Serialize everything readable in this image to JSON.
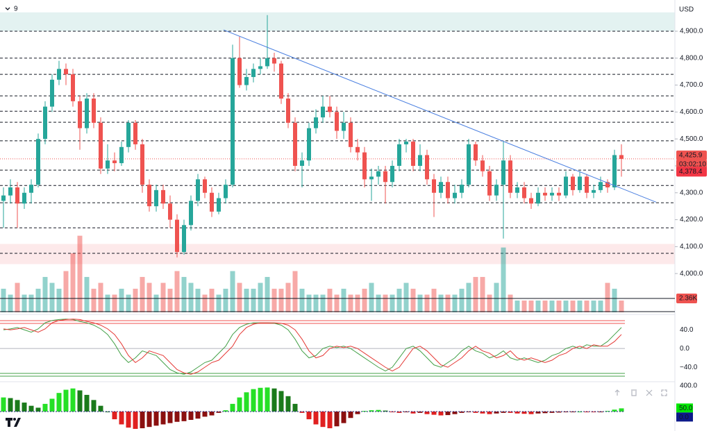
{
  "chart_data": {
    "type": "candlestick",
    "interval": "9",
    "currency": "USD",
    "ylim": [
      3856,
      5016
    ],
    "yticks": [
      {
        "value": 4900,
        "label": "4,900.0"
      },
      {
        "value": 4800,
        "label": "4,800.0"
      },
      {
        "value": 4700,
        "label": "4,700.0"
      },
      {
        "value": 4600,
        "label": "4,600.0"
      },
      {
        "value": 4500,
        "label": "4,500.0"
      },
      {
        "value": 4400,
        "label": "4,400.0"
      },
      {
        "value": 4300,
        "label": "4,300.0"
      },
      {
        "value": 4200,
        "label": "4,200.0"
      },
      {
        "value": 4100,
        "label": "4,100.0"
      },
      {
        "value": 4000,
        "label": "4,000.0"
      }
    ],
    "up_color": "#26a69a",
    "down_color": "#ef5350",
    "levels": [
      4900,
      4800,
      4740,
      4660,
      4603,
      4562,
      4493,
      4384,
      4327,
      4263,
      4170,
      4075
    ],
    "zones": [
      {
        "from": 4900,
        "to": 4970,
        "color": "#e3f2f1"
      },
      {
        "from": 4035,
        "to": 4110,
        "color": "#fde9ea"
      }
    ],
    "trendline": {
      "from": [
        31.7,
        4905
      ],
      "to": [
        94,
        4265
      ],
      "color": "#4a7fe0"
    },
    "last_price": {
      "value": 4425.9,
      "label": "4,425.9"
    },
    "countdown": "03:02:10",
    "ma_price": {
      "value": 4378.4,
      "label": "4,378.4"
    },
    "candles": [
      [
        4270,
        4320,
        4170,
        4290
      ],
      [
        4290,
        4350,
        4260,
        4320
      ],
      [
        4320,
        4340,
        4170,
        4260
      ],
      [
        4260,
        4320,
        4240,
        4300
      ],
      [
        4300,
        4350,
        4260,
        4330
      ],
      [
        4330,
        4520,
        4320,
        4500
      ],
      [
        4500,
        4640,
        4480,
        4620
      ],
      [
        4620,
        4740,
        4600,
        4720
      ],
      [
        4720,
        4790,
        4700,
        4760
      ],
      [
        4760,
        4780,
        4700,
        4740
      ],
      [
        4740,
        4760,
        4620,
        4640
      ],
      [
        4640,
        4660,
        4460,
        4540
      ],
      [
        4540,
        4670,
        4520,
        4650
      ],
      [
        4650,
        4670,
        4540,
        4560
      ],
      [
        4560,
        4580,
        4370,
        4390
      ],
      [
        4390,
        4480,
        4370,
        4420
      ],
      [
        4420,
        4450,
        4380,
        4410
      ],
      [
        4410,
        4490,
        4400,
        4470
      ],
      [
        4470,
        4570,
        4450,
        4560
      ],
      [
        4560,
        4570,
        4460,
        4480
      ],
      [
        4480,
        4500,
        4300,
        4330
      ],
      [
        4330,
        4350,
        4230,
        4250
      ],
      [
        4250,
        4330,
        4230,
        4310
      ],
      [
        4310,
        4330,
        4240,
        4260
      ],
      [
        4260,
        4290,
        4170,
        4200
      ],
      [
        4200,
        4220,
        4060,
        4080
      ],
      [
        4080,
        4200,
        4070,
        4180
      ],
      [
        4180,
        4290,
        4160,
        4270
      ],
      [
        4270,
        4370,
        4250,
        4350
      ],
      [
        4350,
        4360,
        4280,
        4300
      ],
      [
        4300,
        4320,
        4210,
        4230
      ],
      [
        4230,
        4300,
        4220,
        4280
      ],
      [
        4280,
        4350,
        4260,
        4330
      ],
      [
        4330,
        4850,
        4320,
        4800
      ],
      [
        4800,
        4880,
        4690,
        4700
      ],
      [
        4700,
        4760,
        4680,
        4730
      ],
      [
        4730,
        4780,
        4710,
        4760
      ],
      [
        4760,
        4800,
        4740,
        4770
      ],
      [
        4770,
        4960,
        4760,
        4800
      ],
      [
        4800,
        4820,
        4750,
        4780
      ],
      [
        4780,
        4790,
        4630,
        4650
      ],
      [
        4650,
        4670,
        4540,
        4560
      ],
      [
        4560,
        4580,
        4380,
        4400
      ],
      [
        4400,
        4450,
        4320,
        4420
      ],
      [
        4420,
        4560,
        4400,
        4540
      ],
      [
        4540,
        4610,
        4520,
        4580
      ],
      [
        4580,
        4660,
        4560,
        4620
      ],
      [
        4620,
        4660,
        4580,
        4600
      ],
      [
        4600,
        4620,
        4500,
        4530
      ],
      [
        4530,
        4600,
        4500,
        4560
      ],
      [
        4560,
        4580,
        4450,
        4470
      ],
      [
        4470,
        4500,
        4420,
        4450
      ],
      [
        4450,
        4470,
        4320,
        4350
      ],
      [
        4350,
        4390,
        4270,
        4360
      ],
      [
        4360,
        4400,
        4330,
        4380
      ],
      [
        4380,
        4400,
        4260,
        4340
      ],
      [
        4340,
        4420,
        4320,
        4400
      ],
      [
        4400,
        4500,
        4380,
        4480
      ],
      [
        4480,
        4500,
        4450,
        4490
      ],
      [
        4490,
        4500,
        4380,
        4400
      ],
      [
        4400,
        4480,
        4380,
        4440
      ],
      [
        4440,
        4460,
        4330,
        4350
      ],
      [
        4350,
        4370,
        4210,
        4300
      ],
      [
        4300,
        4360,
        4280,
        4340
      ],
      [
        4340,
        4360,
        4260,
        4280
      ],
      [
        4280,
        4330,
        4260,
        4300
      ],
      [
        4300,
        4350,
        4280,
        4330
      ],
      [
        4330,
        4500,
        4320,
        4480
      ],
      [
        4480,
        4490,
        4400,
        4420
      ],
      [
        4420,
        4440,
        4360,
        4380
      ],
      [
        4380,
        4400,
        4270,
        4290
      ],
      [
        4290,
        4350,
        4270,
        4330
      ],
      [
        4330,
        4490,
        4130,
        4420
      ],
      [
        4420,
        4440,
        4280,
        4300
      ],
      [
        4300,
        4340,
        4280,
        4320
      ],
      [
        4320,
        4340,
        4260,
        4280
      ],
      [
        4280,
        4300,
        4240,
        4260
      ],
      [
        4260,
        4320,
        4250,
        4300
      ],
      [
        4300,
        4320,
        4270,
        4290
      ],
      [
        4290,
        4320,
        4270,
        4300
      ],
      [
        4300,
        4320,
        4270,
        4290
      ],
      [
        4290,
        4380,
        4280,
        4360
      ],
      [
        4360,
        4370,
        4290,
        4310
      ],
      [
        4310,
        4380,
        4300,
        4360
      ],
      [
        4360,
        4370,
        4280,
        4300
      ],
      [
        4300,
        4330,
        4280,
        4310
      ],
      [
        4310,
        4360,
        4300,
        4340
      ],
      [
        4340,
        4350,
        4300,
        4320
      ],
      [
        4320,
        4460,
        4310,
        4440
      ],
      [
        4440,
        4480,
        4360,
        4426
      ]
    ],
    "volume": {
      "label": "2.36K",
      "level": 2.36,
      "ylim": [
        0,
        53
      ],
      "values": [
        4,
        3,
        5,
        3,
        3,
        4,
        6,
        5,
        4,
        7,
        10,
        13,
        6,
        4,
        5,
        3,
        3,
        4,
        3,
        4,
        6,
        5,
        3,
        5,
        4,
        7,
        6,
        5,
        4,
        3,
        4,
        3,
        4,
        7,
        5,
        4,
        4,
        5,
        6,
        4,
        4,
        5,
        7,
        4,
        3,
        3,
        3,
        4,
        3,
        4,
        3,
        3,
        4,
        5,
        3,
        3,
        3,
        4,
        5,
        4,
        3,
        3,
        4,
        3,
        3,
        3,
        4,
        5,
        6,
        6,
        3,
        5,
        11,
        3,
        2,
        2,
        2,
        2,
        2,
        2,
        2,
        2,
        2,
        2,
        2,
        2,
        2,
        5,
        4,
        2
      ]
    },
    "oscillator": {
      "ylim": [
        -68,
        70
      ],
      "yticks": [
        {
          "value": 40,
          "label": "40.0"
        },
        {
          "value": 0,
          "label": "0.0"
        },
        {
          "value": -40,
          "label": "−40.0"
        }
      ],
      "series": [
        {
          "color": "#43a047",
          "values": [
            40,
            42,
            45,
            40,
            35,
            42,
            55,
            60,
            62,
            63,
            62,
            58,
            55,
            50,
            42,
            30,
            10,
            -15,
            -30,
            -20,
            -5,
            -10,
            -15,
            -30,
            -45,
            -52,
            -55,
            -50,
            -40,
            -30,
            -25,
            -10,
            5,
            30,
            45,
            52,
            55,
            55,
            55,
            54,
            50,
            40,
            20,
            -5,
            -20,
            -15,
            0,
            5,
            2,
            5,
            0,
            -10,
            -20,
            -30,
            -40,
            -48,
            -40,
            -20,
            0,
            5,
            -5,
            -20,
            -35,
            -40,
            -30,
            -20,
            -5,
            5,
            -5,
            -10,
            -20,
            -15,
            -5,
            -20,
            -25,
            -20,
            -25,
            -30,
            -25,
            -15,
            -10,
            0,
            5,
            0,
            8,
            5,
            5,
            15,
            30,
            45
          ]
        },
        {
          "color": "#e53935",
          "values": [
            42,
            40,
            42,
            45,
            40,
            35,
            42,
            55,
            60,
            62,
            63,
            62,
            58,
            55,
            50,
            42,
            30,
            10,
            -15,
            -30,
            -20,
            -5,
            -10,
            -15,
            -30,
            -45,
            -52,
            -55,
            -50,
            -40,
            -30,
            -25,
            -10,
            5,
            30,
            45,
            52,
            55,
            55,
            55,
            54,
            50,
            40,
            20,
            -5,
            -20,
            -15,
            0,
            5,
            2,
            5,
            0,
            -10,
            -20,
            -30,
            -40,
            -48,
            -40,
            -20,
            0,
            5,
            -5,
            -20,
            -35,
            -40,
            -30,
            -20,
            -5,
            5,
            -5,
            -10,
            -20,
            -15,
            -5,
            -20,
            -25,
            -20,
            -25,
            -30,
            -25,
            -15,
            -10,
            0,
            5,
            0,
            8,
            5,
            5,
            15,
            30
          ]
        }
      ]
    },
    "histogram": {
      "ylim": [
        -303,
        465
      ],
      "yticks": [
        {
          "value": 400,
          "label": "400.0"
        }
      ],
      "last": {
        "value": 50,
        "label": "50.0"
      },
      "signal": {
        "value": 0,
        "label": "0.0"
      },
      "values": [
        220,
        210,
        180,
        140,
        90,
        60,
        120,
        200,
        290,
        340,
        360,
        330,
        260,
        180,
        90,
        0,
        -120,
        -200,
        -250,
        -270,
        -260,
        -240,
        -220,
        -200,
        -180,
        -160,
        -150,
        -130,
        -110,
        -80,
        -60,
        -20,
        20,
        120,
        220,
        300,
        350,
        370,
        375,
        360,
        320,
        240,
        120,
        -20,
        -120,
        -200,
        -240,
        -260,
        -230,
        -180,
        -100,
        -40,
        10,
        20,
        25,
        15,
        -10,
        -20,
        -10,
        -30,
        -20,
        -40,
        -50,
        -60,
        -55,
        -40,
        -20,
        -10,
        -20,
        -30,
        -40,
        -30,
        -20,
        -20,
        -30,
        -35,
        -40,
        -30,
        -25,
        -20,
        -15,
        -10,
        -5,
        0,
        -5,
        -8,
        -3,
        10,
        30,
        50
      ]
    }
  }
}
